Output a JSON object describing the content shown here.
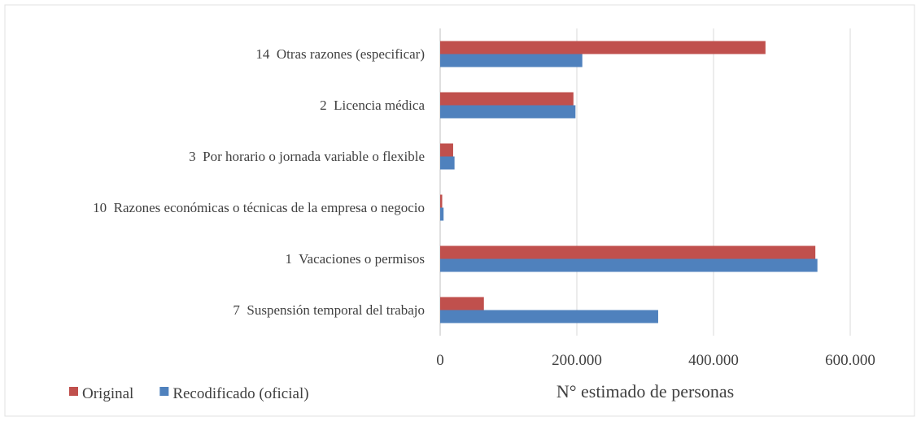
{
  "chart_data": {
    "type": "hbar",
    "categories": [
      "14  Otras razones (especificar)",
      "2  Licencia médica",
      "3  Por horario o jornada variable o flexible",
      "10  Razones económicas o técnicas de la empresa o negocio",
      "1  Vacaciones o permisos",
      "7  Suspensión temporal del trabajo"
    ],
    "series": [
      {
        "name": "Original",
        "color": "#c0504d",
        "values": [
          476000,
          195000,
          19000,
          3000,
          549000,
          64000
        ]
      },
      {
        "name": "Recodificado (oficial)",
        "color": "#4f81bd",
        "values": [
          208000,
          198000,
          21000,
          5000,
          552000,
          319000
        ]
      }
    ],
    "xlabel": "N° estimado de personas",
    "xlim": [
      0,
      600000
    ],
    "xticks": [
      0,
      {
        "value": 200000,
        "label": "200.000"
      },
      {
        "value": 400000,
        "label": "400.000"
      },
      {
        "value": 600000,
        "label": "600.000"
      }
    ],
    "grid": true,
    "legend": "bottom"
  }
}
